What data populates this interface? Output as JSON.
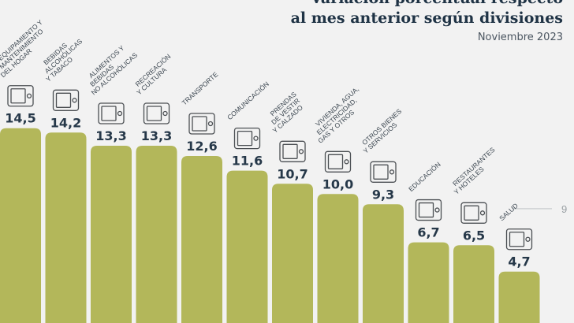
{
  "header": {
    "title_line1": "Variación porcentual respecto",
    "title_line2": "al mes anterior según divisiones",
    "subtitle": "Noviembre 2023"
  },
  "colors": {
    "bar": "#b3b75a",
    "value_text": "#263849",
    "reference_line": "#cfd2d4"
  },
  "chart_data": {
    "type": "bar",
    "title": "Variación porcentual respecto al mes anterior según divisiones",
    "subtitle": "Noviembre 2023",
    "categories": [
      "EQUIPAMIENTO Y MANTENIMIENTO DEL HOGAR",
      "BEBIDAS ALCOHÓLICAS Y TABACO",
      "ALIMENTOS Y BEBIDAS NO ALCOHÓLICAS",
      "RECREACIÓN Y CULTURA",
      "TRANSPORTE",
      "COMUNICACIÓN",
      "PRENDAS DE VESTIR Y CALZADO",
      "VIVIENDA, AGUA, ELECTRICIDAD, GAS Y OTROS",
      "OTROS BIENES Y SERVICIOS",
      "EDUCACIÓN",
      "RESTAURANTES Y HOTELES",
      "SALUD"
    ],
    "category_lines": [
      [
        "EQUIPAMIENTO Y",
        "MANTENIMIENTO",
        "DEL HOGAR"
      ],
      [
        "BEBIDAS",
        "ALCOHÓLICAS",
        "Y TABACO"
      ],
      [
        "ALIMENTOS Y",
        "BEBIDAS",
        "NO ALCOHÓLICAS"
      ],
      [
        "RECREACIÓN",
        "Y CULTURA"
      ],
      [
        "TRANSPORTE"
      ],
      [
        "COMUNICACIÓN"
      ],
      [
        "PRENDAS",
        "DE VESTIR",
        "Y CALZADO"
      ],
      [
        "VIVIENDA, AGUA,",
        "ELECTRICIDAD,",
        "GAS Y OTROS"
      ],
      [
        "OTROS BIENES",
        "Y SERVICIOS"
      ],
      [
        "EDUCACIÓN"
      ],
      [
        "RESTAURANTES",
        "Y HOTELES"
      ],
      [
        "SALUD"
      ]
    ],
    "values": [
      14.5,
      14.2,
      13.3,
      13.3,
      12.6,
      11.6,
      10.7,
      10.0,
      9.3,
      6.7,
      6.5,
      4.7
    ],
    "value_labels": [
      "14,5",
      "14,2",
      "13,3",
      "13,3",
      "12,6",
      "11,6",
      "10,7",
      "10,0",
      "9,3",
      "6,7",
      "6,5",
      "4,7"
    ],
    "icons": [
      "microwave-icon",
      "wine-bottle-icon",
      "food-bowl-icon",
      "camera-icon",
      "bus-icon",
      "phone-icon",
      "clothes-icon",
      "house-documents-icon",
      "scissors-ribbon-icon",
      "diploma-icon",
      "plate-cutlery-icon",
      "hospital-icon"
    ],
    "reference_line": {
      "value": 9,
      "label": "9"
    },
    "xlabel": "",
    "ylabel": "",
    "ylim": [
      0,
      23.3
    ],
    "grid": false,
    "legend": "none"
  }
}
